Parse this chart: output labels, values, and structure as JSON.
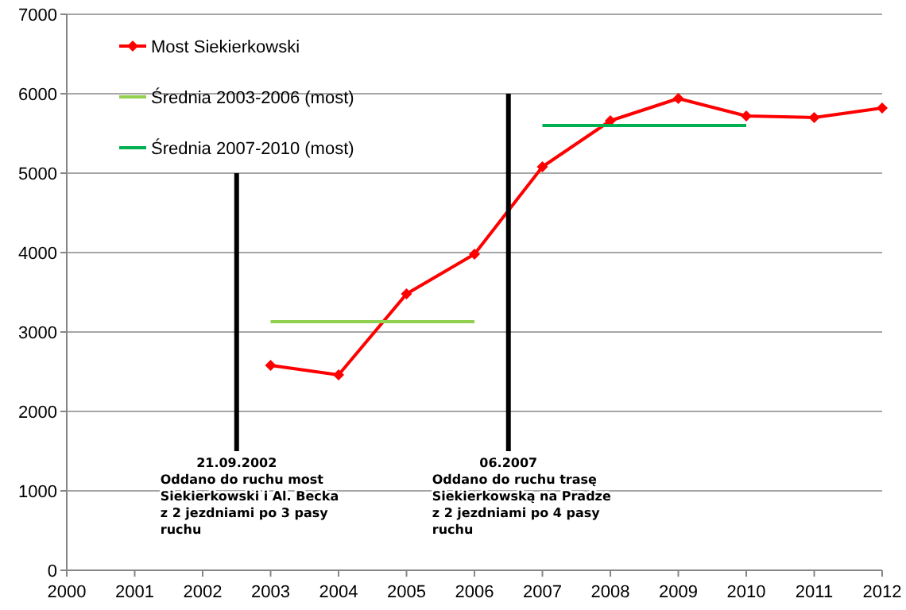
{
  "chart_data": {
    "type": "line",
    "xlim": [
      2000,
      2012
    ],
    "xticks": [
      2000,
      2001,
      2002,
      2003,
      2004,
      2005,
      2006,
      2007,
      2008,
      2009,
      2010,
      2011,
      2012
    ],
    "ylim": [
      0,
      7000
    ],
    "yticks": [
      0,
      1000,
      2000,
      3000,
      4000,
      5000,
      6000,
      7000
    ],
    "grid": "y",
    "legend": "top left",
    "line_style": "solid",
    "series": [
      {
        "name": "Most Siekierkowski",
        "color": "#ff0000",
        "marker": "diamond",
        "x": [
          2003,
          2004,
          2005,
          2006,
          2007,
          2008,
          2009,
          2010,
          2011,
          2012
        ],
        "values": [
          2580,
          2460,
          3480,
          3980,
          5080,
          5660,
          5940,
          5720,
          5700,
          5820
        ]
      },
      {
        "name": "Średnia 2003-2006 (most)",
        "color": "#92d050",
        "marker": "none",
        "x": [
          2003,
          2006
        ],
        "values": [
          3130,
          3130
        ]
      },
      {
        "name": "Średnia 2007-2010 (most)",
        "color": "#00b050",
        "marker": "none",
        "x": [
          2007,
          2010
        ],
        "values": [
          5600,
          5600
        ]
      },
      {
        "color": "#000000",
        "marker": "none",
        "x": [
          2002.5,
          2002.5
        ],
        "values": [
          1500,
          5000
        ]
      },
      {
        "color": "#000000",
        "marker": "none",
        "x": [
          2006.5,
          2006.5
        ],
        "values": [
          1500,
          6000
        ]
      }
    ],
    "annotations": [
      "21.09.2002\nOddano do ruchu most\nSiekierkowski i Al. Becka\nz 2 jezdniami po 3 pasy\nruchu",
      "06.2007\nOddano do ruchu trasę\nSiekierkowską na Pradze\nz 2 jezdniami po 4 pasy\nruchu"
    ]
  }
}
